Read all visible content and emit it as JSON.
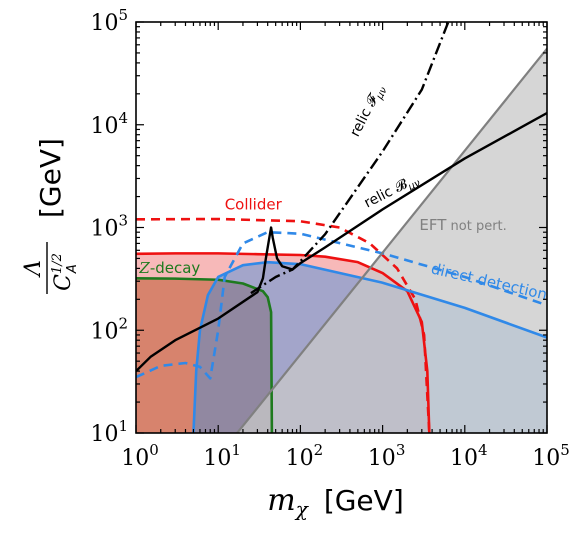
{
  "chart_data": {
    "type": "area",
    "x_scale": "log",
    "y_scale": "log",
    "xlim": [
      1,
      100000
    ],
    "ylim": [
      10,
      100000
    ],
    "xlabel": {
      "symbol": "m",
      "sub": "χ",
      "unit": "[GeV]"
    },
    "ylabel": {
      "num": "Λ",
      "den": "C",
      "den_sub": "A",
      "den_sup": "1/2",
      "unit": "[GeV]"
    },
    "x_ticks": [
      {
        "base": "10",
        "exp": "0",
        "value": 1
      },
      {
        "base": "10",
        "exp": "1",
        "value": 10
      },
      {
        "base": "10",
        "exp": "2",
        "value": 100
      },
      {
        "base": "10",
        "exp": "3",
        "value": 1000
      },
      {
        "base": "10",
        "exp": "4",
        "value": 10000
      },
      {
        "base": "10",
        "exp": "5",
        "value": 100000
      }
    ],
    "y_ticks": [
      {
        "base": "10",
        "exp": "1",
        "value": 10
      },
      {
        "base": "10",
        "exp": "2",
        "value": 100
      },
      {
        "base": "10",
        "exp": "3",
        "value": 1000
      },
      {
        "base": "10",
        "exp": "4",
        "value": 10000
      },
      {
        "base": "10",
        "exp": "5",
        "value": 100000
      }
    ],
    "regions": [
      {
        "name": "z-decay",
        "color": "#b4824f",
        "opacity": 0.95,
        "points": [
          [
            1,
            10
          ],
          [
            1,
            320
          ],
          [
            3,
            318
          ],
          [
            10,
            310
          ],
          [
            20,
            285
          ],
          [
            35,
            240
          ],
          [
            40,
            210
          ],
          [
            44,
            150
          ],
          [
            45,
            10
          ]
        ]
      },
      {
        "name": "collider",
        "color": "#f08080",
        "opacity": 0.55,
        "points": [
          [
            1,
            10
          ],
          [
            1,
            555
          ],
          [
            3,
            560
          ],
          [
            10,
            560
          ],
          [
            30,
            550
          ],
          [
            100,
            540
          ],
          [
            200,
            520
          ],
          [
            500,
            460
          ],
          [
            1000,
            360
          ],
          [
            2000,
            240
          ],
          [
            3000,
            120
          ],
          [
            3500,
            40
          ],
          [
            3700,
            10
          ]
        ]
      },
      {
        "name": "direct-detection",
        "color": "#3c8ee0",
        "opacity": 0.45,
        "points": [
          [
            5,
            10
          ],
          [
            5.4,
            40
          ],
          [
            6,
            100
          ],
          [
            7.5,
            220
          ],
          [
            10,
            330
          ],
          [
            20,
            430
          ],
          [
            40,
            460
          ],
          [
            100,
            440
          ],
          [
            1000,
            290
          ],
          [
            10000,
            165
          ],
          [
            100000,
            85
          ],
          [
            100000,
            10
          ]
        ]
      },
      {
        "name": "eft-not-perturbative",
        "color": "#c8c8c8",
        "opacity": 0.75,
        "points": [
          [
            17,
            10
          ],
          [
            100000,
            55000
          ],
          [
            100000,
            10
          ]
        ]
      }
    ],
    "lines": [
      {
        "name": "collider-limit-solid",
        "color": "#ee1111",
        "width": 2.6,
        "dash": "",
        "points": [
          [
            1,
            555
          ],
          [
            3,
            560
          ],
          [
            10,
            560
          ],
          [
            30,
            550
          ],
          [
            100,
            540
          ],
          [
            200,
            520
          ],
          [
            500,
            460
          ],
          [
            1000,
            360
          ],
          [
            2000,
            240
          ],
          [
            3000,
            120
          ],
          [
            3500,
            40
          ],
          [
            3700,
            10
          ]
        ]
      },
      {
        "name": "collider-limit-dashed",
        "color": "#ee1111",
        "width": 2.6,
        "dash": "9,6",
        "points": [
          [
            1,
            1200
          ],
          [
            10,
            1210
          ],
          [
            100,
            1150
          ],
          [
            300,
            1000
          ],
          [
            700,
            700
          ],
          [
            1500,
            400
          ],
          [
            2500,
            200
          ],
          [
            3200,
            90
          ],
          [
            3700,
            10
          ]
        ]
      },
      {
        "name": "z-decay-limit",
        "color": "#1e7a1e",
        "width": 2.6,
        "dash": "",
        "points": [
          [
            1,
            320
          ],
          [
            3,
            318
          ],
          [
            10,
            310
          ],
          [
            20,
            285
          ],
          [
            35,
            240
          ],
          [
            40,
            210
          ],
          [
            44,
            150
          ],
          [
            45,
            10
          ]
        ]
      },
      {
        "name": "direct-detection-limit-solid",
        "color": "#3089e8",
        "width": 2.6,
        "dash": "",
        "points": [
          [
            5,
            10
          ],
          [
            5.4,
            40
          ],
          [
            6,
            100
          ],
          [
            7.5,
            220
          ],
          [
            10,
            330
          ],
          [
            20,
            430
          ],
          [
            40,
            460
          ],
          [
            100,
            440
          ],
          [
            1000,
            290
          ],
          [
            10000,
            165
          ],
          [
            100000,
            85
          ]
        ]
      },
      {
        "name": "direct-detection-limit-dashed",
        "color": "#3089e8",
        "width": 2.6,
        "dash": "9,6",
        "points": [
          [
            1,
            35
          ],
          [
            2,
            45
          ],
          [
            4,
            48
          ],
          [
            6,
            44
          ],
          [
            8,
            34
          ],
          [
            10,
            100
          ],
          [
            12,
            330
          ],
          [
            20,
            700
          ],
          [
            40,
            900
          ],
          [
            100,
            870
          ],
          [
            1000,
            560
          ],
          [
            10000,
            330
          ],
          [
            100000,
            175
          ]
        ]
      },
      {
        "name": "eft-boundary",
        "color": "#808080",
        "width": 2.2,
        "dash": "",
        "points": [
          [
            17,
            10
          ],
          [
            100000,
            55000
          ]
        ]
      },
      {
        "name": "relic-b-line",
        "color": "#000000",
        "width": 2.4,
        "dash": "",
        "points": [
          [
            1,
            40
          ],
          [
            1.5,
            55
          ],
          [
            3,
            80
          ],
          [
            10,
            130
          ],
          [
            30,
            235
          ],
          [
            35,
            320
          ],
          [
            38,
            500
          ],
          [
            41,
            720
          ],
          [
            44,
            1000
          ],
          [
            46,
            800
          ],
          [
            52,
            500
          ],
          [
            60,
            420
          ],
          [
            80,
            390
          ],
          [
            100,
            450
          ],
          [
            200,
            640
          ],
          [
            1000,
            1500
          ],
          [
            10000,
            4700
          ],
          [
            100000,
            13000
          ]
        ]
      },
      {
        "name": "relic-f-line",
        "color": "#000000",
        "width": 2.4,
        "dash": "12,4,2,4",
        "points": [
          [
            25,
            230
          ],
          [
            50,
            330
          ],
          [
            80,
            390
          ],
          [
            100,
            470
          ],
          [
            200,
            860
          ],
          [
            1000,
            5500
          ],
          [
            3000,
            22000
          ],
          [
            6300,
            100000
          ]
        ]
      }
    ],
    "annotations": [
      {
        "name": "collider-label",
        "text": "Collider",
        "color": "#ee1111",
        "size": 15,
        "x": 12,
        "y": 1500,
        "rotate": 0
      },
      {
        "name": "z-decay-label",
        "text": "Z-decay",
        "italic_prefix": "Z",
        "color": "#1e7a1e",
        "size": 15,
        "x": 1.1,
        "y": 360,
        "rotate": 0
      },
      {
        "name": "direct-detection-label",
        "text": "direct detection",
        "color": "#3089e8",
        "size": 15,
        "x": 3800,
        "y": 360,
        "rotate": 13
      },
      {
        "name": "eft-label",
        "text": "EFT",
        "suffix": " not pert.",
        "color": "#808080",
        "size": 15,
        "x": 2800,
        "y": 950,
        "rotate": 0
      },
      {
        "name": "relic-b-label",
        "text": "relic 𝓑",
        "sub": "μν",
        "color": "#000000",
        "size": 14,
        "x": 650,
        "y": 1550,
        "rotate": -27
      },
      {
        "name": "relic-f-label",
        "text": "relic 𝓕",
        "sub": "μν",
        "color": "#000000",
        "size": 14,
        "x": 500,
        "y": 7500,
        "rotate": -63
      }
    ]
  }
}
